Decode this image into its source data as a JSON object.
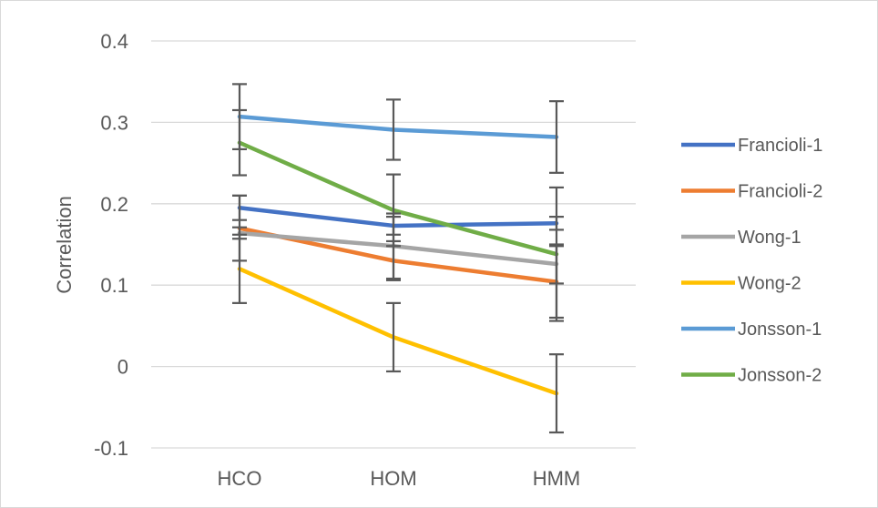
{
  "chart_data": {
    "type": "line",
    "title": "",
    "xlabel": "",
    "ylabel": "Correlation",
    "categories": [
      "HCO",
      "HOM",
      "HMM"
    ],
    "ylim": [
      -0.1,
      0.4
    ],
    "yticks": [
      -0.1,
      0,
      0.1,
      0.2,
      0.3,
      0.4
    ],
    "ytick_labels": [
      "-0.1",
      "0",
      "0.1",
      "0.2",
      "0.3",
      "0.4"
    ],
    "grid": true,
    "legend_position": "right",
    "error_bars": true,
    "error_bar_color": "#595959",
    "series": [
      {
        "name": "Francioli-1",
        "color": "#4472c4",
        "values": [
          0.195,
          0.173,
          0.176
        ],
        "error": [
          0.015,
          0.011,
          0.008
        ]
      },
      {
        "name": "Francioli-2",
        "color": "#ed7d31",
        "values": [
          0.17,
          0.13,
          0.104
        ],
        "error": [
          0.04,
          0.024,
          0.044
        ]
      },
      {
        "name": "Wong-1",
        "color": "#a5a5a5",
        "values": [
          0.164,
          0.148,
          0.126
        ],
        "error": [
          0.007,
          0.04,
          0.024
        ]
      },
      {
        "name": "Wong-2",
        "color": "#ffc000",
        "values": [
          0.12,
          0.036,
          -0.033
        ],
        "error": [
          0.042,
          0.042,
          0.048
        ]
      },
      {
        "name": "Jonsson-1",
        "color": "#5b9bd5",
        "values": [
          0.307,
          0.291,
          0.282
        ],
        "error": [
          0.04,
          0.037,
          0.044
        ]
      },
      {
        "name": "Jonsson-2",
        "color": "#70ad47",
        "values": [
          0.275,
          0.192,
          0.138
        ],
        "error": [
          0.04,
          0.044,
          0.082
        ]
      }
    ]
  }
}
